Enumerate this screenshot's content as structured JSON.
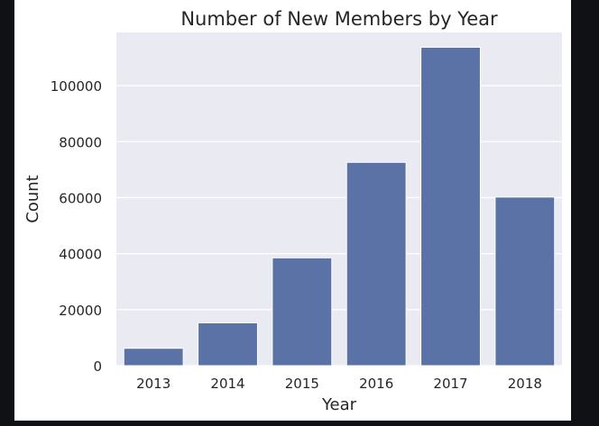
{
  "chart_data": {
    "type": "bar",
    "title": "Number of New Members by Year",
    "xlabel": "Year",
    "ylabel": "Count",
    "categories": [
      "2013",
      "2014",
      "2015",
      "2016",
      "2017",
      "2018"
    ],
    "values": [
      6200,
      15300,
      38500,
      72600,
      113700,
      60200
    ],
    "ylim": [
      0,
      119000
    ],
    "yticks": [
      0,
      20000,
      40000,
      60000,
      80000,
      100000
    ],
    "ytick_labels": [
      "0",
      "20000",
      "40000",
      "60000",
      "80000",
      "100000"
    ],
    "grid": true,
    "colors": {
      "bar": "#5a72a5",
      "plot_background": "#eaeaf2",
      "grid": "#ffffff",
      "outer_background": "#0f1115"
    }
  }
}
